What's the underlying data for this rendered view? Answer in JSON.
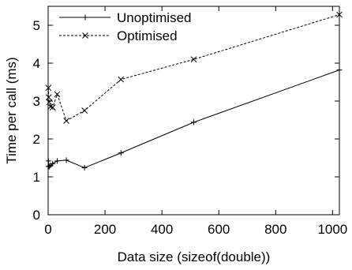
{
  "chart_data": {
    "type": "line",
    "xlabel": "Data size (sizeof(double))",
    "ylabel": "Time per call (ms)",
    "xlim": [
      0,
      1024
    ],
    "ylim": [
      0,
      5.5
    ],
    "xticks": [
      0,
      200,
      400,
      600,
      800,
      1000
    ],
    "yticks": [
      0,
      1,
      2,
      3,
      4,
      5
    ],
    "grid": false,
    "legend_position": "top-left",
    "series": [
      {
        "name": "Unoptimised",
        "style": "solid",
        "marker": "plus",
        "points": [
          [
            1,
            1.42
          ],
          [
            2,
            1.28
          ],
          [
            4,
            1.27
          ],
          [
            8,
            1.3
          ],
          [
            16,
            1.35
          ],
          [
            32,
            1.42
          ],
          [
            64,
            1.44
          ],
          [
            128,
            1.24
          ],
          [
            256,
            1.63
          ],
          [
            512,
            2.44
          ],
          [
            1024,
            3.82
          ]
        ]
      },
      {
        "name": "Optimised",
        "style": "dashed",
        "marker": "cross",
        "points": [
          [
            1,
            3.35
          ],
          [
            2,
            3.1
          ],
          [
            4,
            2.97
          ],
          [
            8,
            2.85
          ],
          [
            16,
            2.83
          ],
          [
            32,
            3.18
          ],
          [
            64,
            2.48
          ],
          [
            128,
            2.75
          ],
          [
            256,
            3.57
          ],
          [
            512,
            4.1
          ],
          [
            1024,
            5.28
          ]
        ]
      }
    ]
  }
}
